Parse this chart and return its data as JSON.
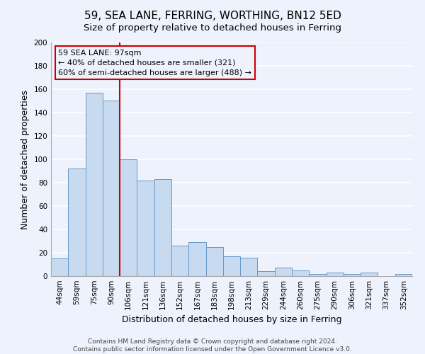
{
  "title": "59, SEA LANE, FERRING, WORTHING, BN12 5ED",
  "subtitle": "Size of property relative to detached houses in Ferring",
  "xlabel": "Distribution of detached houses by size in Ferring",
  "ylabel": "Number of detached properties",
  "categories": [
    "44sqm",
    "59sqm",
    "75sqm",
    "90sqm",
    "106sqm",
    "121sqm",
    "136sqm",
    "152sqm",
    "167sqm",
    "183sqm",
    "198sqm",
    "213sqm",
    "229sqm",
    "244sqm",
    "260sqm",
    "275sqm",
    "290sqm",
    "306sqm",
    "321sqm",
    "337sqm",
    "352sqm"
  ],
  "values": [
    15,
    92,
    157,
    150,
    100,
    82,
    83,
    26,
    29,
    25,
    17,
    16,
    4,
    7,
    5,
    2,
    3,
    2,
    3,
    0,
    2
  ],
  "bar_color": "#c8daf0",
  "bar_edge_color": "#6699cc",
  "vline_x_index": 3.5,
  "vline_color": "#cc0000",
  "annotation_line1": "59 SEA LANE: 97sqm",
  "annotation_line2": "← 40% of detached houses are smaller (321)",
  "annotation_line3": "60% of semi-detached houses are larger (488) →",
  "annotation_box_color": "#cc0000",
  "ylim": [
    0,
    200
  ],
  "yticks": [
    0,
    20,
    40,
    60,
    80,
    100,
    120,
    140,
    160,
    180,
    200
  ],
  "footer1": "Contains HM Land Registry data © Crown copyright and database right 2024.",
  "footer2": "Contains public sector information licensed under the Open Government Licence v3.0.",
  "background_color": "#edf2fc",
  "grid_color": "#ffffff",
  "title_fontsize": 11,
  "subtitle_fontsize": 9.5,
  "axis_label_fontsize": 9,
  "tick_fontsize": 7.5,
  "footer_fontsize": 6.5,
  "annot_fontsize": 8
}
